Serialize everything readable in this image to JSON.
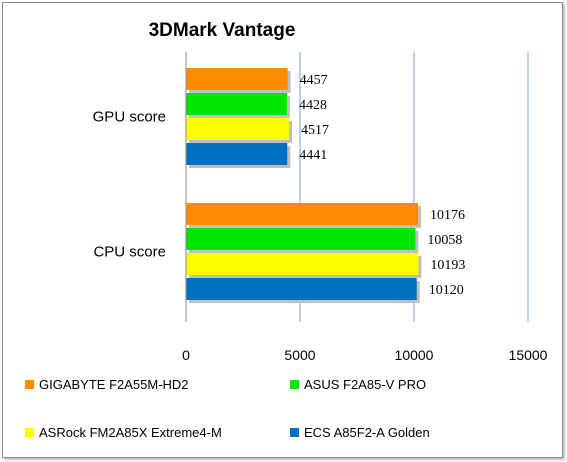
{
  "chart_data": {
    "type": "bar",
    "orientation": "horizontal",
    "title": "3DMark Vantage",
    "categories": [
      "GPU score",
      "CPU score"
    ],
    "series": [
      {
        "name": "GIGABYTE F2A55M-HD2",
        "color": "#ff8c00",
        "values": [
          4457,
          10176
        ]
      },
      {
        "name": "ASUS F2A85-V PRO",
        "color": "#00e600",
        "values": [
          4428,
          10058
        ]
      },
      {
        "name": "ASRock FM2A85X Extreme4-M",
        "color": "#ffff00",
        "values": [
          4517,
          10193
        ]
      },
      {
        "name": "ECS A85F2-A Golden",
        "color": "#0070c0",
        "values": [
          4441,
          10120
        ]
      }
    ],
    "xlim": [
      0,
      15000
    ],
    "xticks": [
      0,
      5000,
      10000,
      15000
    ],
    "grid": "vertical",
    "legend": "bottom"
  }
}
